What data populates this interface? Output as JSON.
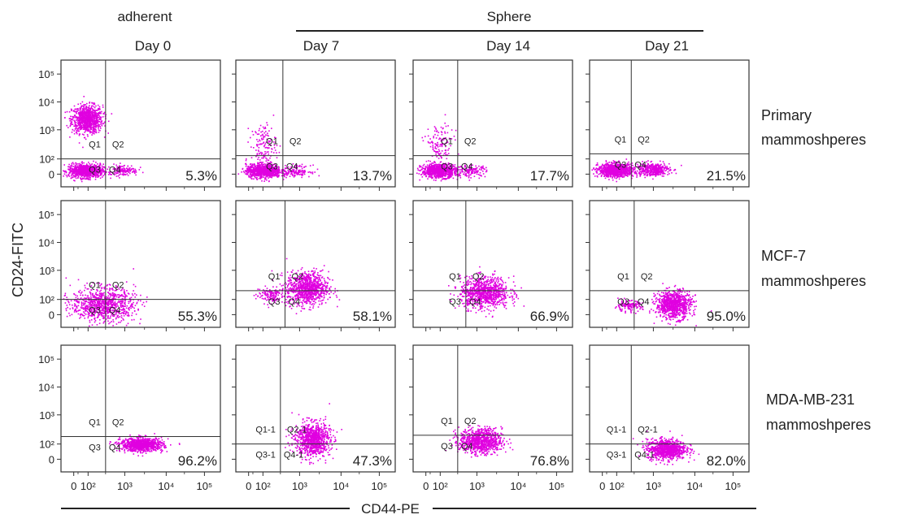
{
  "figure": {
    "group_labels": [
      "adherent",
      "Sphere"
    ],
    "column_titles": [
      "Day 0",
      "Day 7",
      "Day 14",
      "Day 21"
    ],
    "row_labels": [
      [
        "Primary",
        "mammoshperes"
      ],
      [
        "MCF-7",
        "mammoshperes"
      ],
      [
        "MDA-MB-231",
        "mammoshperes"
      ]
    ],
    "y_axis_label": "CD24-FITC",
    "x_axis_label": "CD44-PE",
    "x_ticks": [
      "0",
      "10²",
      "10³",
      "10⁴",
      "10⁵"
    ],
    "y_ticks": [
      "10⁵",
      "10⁴",
      "10³",
      "10²",
      "0"
    ]
  },
  "colors": {
    "dots": "#e000e0",
    "lines": "#333333",
    "text": "#222222"
  },
  "chart_data": [
    {
      "type": "scatter",
      "row": 0,
      "col": 0,
      "percent": "5.3%",
      "quadrant_labels": [
        "Q1",
        "Q2",
        "Q3",
        "Q4"
      ],
      "gate": {
        "x": 300,
        "y": 100
      },
      "populations": [
        {
          "x": 90,
          "y": 2500,
          "spread_x": 0.22,
          "spread_y": 0.25,
          "density": "high"
        },
        {
          "x": 80,
          "y": 25,
          "spread_x": 0.25,
          "spread_y": 0.12,
          "density": "high"
        },
        {
          "x": 900,
          "y": 30,
          "spread_x": 0.2,
          "spread_y": 0.1,
          "density": "low"
        }
      ]
    },
    {
      "type": "scatter",
      "row": 0,
      "col": 1,
      "percent": "13.7%",
      "quadrant_labels": [
        "Q1",
        "Q2",
        "Q3",
        "Q4"
      ],
      "gate": {
        "x": 350,
        "y": 130
      },
      "populations": [
        {
          "x": 100,
          "y": 300,
          "spread_x": 0.18,
          "spread_y": 0.4,
          "density": "low"
        },
        {
          "x": 100,
          "y": 25,
          "spread_x": 0.25,
          "spread_y": 0.12,
          "density": "high"
        },
        {
          "x": 800,
          "y": 25,
          "spread_x": 0.2,
          "spread_y": 0.1,
          "density": "low"
        }
      ]
    },
    {
      "type": "scatter",
      "row": 0,
      "col": 2,
      "percent": "17.7%",
      "quadrant_labels": [
        "Q1",
        "Q2",
        "Q3",
        "Q4"
      ],
      "gate": {
        "x": 300,
        "y": 130
      },
      "populations": [
        {
          "x": 90,
          "y": 300,
          "spread_x": 0.2,
          "spread_y": 0.4,
          "density": "low"
        },
        {
          "x": 90,
          "y": 25,
          "spread_x": 0.25,
          "spread_y": 0.12,
          "density": "high"
        },
        {
          "x": 700,
          "y": 25,
          "spread_x": 0.2,
          "spread_y": 0.1,
          "density": "low"
        }
      ]
    },
    {
      "type": "scatter",
      "row": 0,
      "col": 3,
      "percent": "21.5%",
      "quadrant_labels": [
        "Q1",
        "Q2",
        "Q3",
        "Q4"
      ],
      "gate": {
        "x": 250,
        "y": 150
      },
      "populations": [
        {
          "x": 90,
          "y": 30,
          "spread_x": 0.25,
          "spread_y": 0.12,
          "density": "high"
        },
        {
          "x": 900,
          "y": 35,
          "spread_x": 0.25,
          "spread_y": 0.12,
          "density": "medium"
        }
      ]
    },
    {
      "type": "scatter",
      "row": 1,
      "col": 0,
      "percent": "55.3%",
      "quadrant_labels": [
        "Q1",
        "Q2",
        "Q3",
        "Q4"
      ],
      "gate": {
        "x": 300,
        "y": 100
      },
      "populations": [
        {
          "x": 250,
          "y": 70,
          "spread_x": 0.45,
          "spread_y": 0.3,
          "density": "high"
        }
      ]
    },
    {
      "type": "scatter",
      "row": 1,
      "col": 1,
      "percent": "58.1%",
      "quadrant_labels": [
        "Q1",
        "Q2",
        "Q3",
        "Q4"
      ],
      "gate": {
        "x": 400,
        "y": 200
      },
      "populations": [
        {
          "x": 1500,
          "y": 250,
          "spread_x": 0.3,
          "spread_y": 0.3,
          "density": "high"
        },
        {
          "x": 150,
          "y": 150,
          "spread_x": 0.2,
          "spread_y": 0.15,
          "density": "low"
        }
      ]
    },
    {
      "type": "scatter",
      "row": 1,
      "col": 2,
      "percent": "66.9%",
      "quadrant_labels": [
        "Q1",
        "Q2",
        "Q3",
        "Q4"
      ],
      "gate": {
        "x": 500,
        "y": 200
      },
      "populations": [
        {
          "x": 1500,
          "y": 180,
          "spread_x": 0.35,
          "spread_y": 0.28,
          "density": "high"
        }
      ]
    },
    {
      "type": "scatter",
      "row": 1,
      "col": 3,
      "percent": "95.0%",
      "quadrant_labels": [
        "Q1",
        "Q2",
        "Q3",
        "Q4"
      ],
      "gate": {
        "x": 300,
        "y": 200
      },
      "populations": [
        {
          "x": 3000,
          "y": 70,
          "spread_x": 0.25,
          "spread_y": 0.25,
          "density": "high"
        },
        {
          "x": 200,
          "y": 60,
          "spread_x": 0.2,
          "spread_y": 0.1,
          "density": "low"
        }
      ]
    },
    {
      "type": "scatter",
      "row": 2,
      "col": 0,
      "percent": "96.2%",
      "quadrant_labels": [
        "Q1",
        "Q2",
        "Q3",
        "Q4"
      ],
      "gate": {
        "x": 300,
        "y": 180
      },
      "populations": [
        {
          "x": 2500,
          "y": 100,
          "spread_x": 0.3,
          "spread_y": 0.12,
          "density": "high"
        }
      ]
    },
    {
      "type": "scatter",
      "row": 2,
      "col": 1,
      "percent": "47.3%",
      "quadrant_labels": [
        "Q1-1",
        "Q2-1",
        "Q3-1",
        "Q4-1"
      ],
      "gate": {
        "x": 300,
        "y": 100
      },
      "populations": [
        {
          "x": 2000,
          "y": 150,
          "spread_x": 0.25,
          "spread_y": 0.3,
          "density": "high"
        }
      ]
    },
    {
      "type": "scatter",
      "row": 2,
      "col": 2,
      "percent": "76.8%",
      "quadrant_labels": [
        "Q1",
        "Q2",
        "Q3",
        "Q4"
      ],
      "gate": {
        "x": 300,
        "y": 200
      },
      "populations": [
        {
          "x": 1200,
          "y": 130,
          "spread_x": 0.3,
          "spread_y": 0.22,
          "density": "high"
        }
      ]
    },
    {
      "type": "scatter",
      "row": 2,
      "col": 3,
      "percent": "82.0%",
      "quadrant_labels": [
        "Q1-1",
        "Q2-1",
        "Q3-1",
        "Q4-1"
      ],
      "gate": {
        "x": 250,
        "y": 100
      },
      "populations": [
        {
          "x": 2000,
          "y": 70,
          "spread_x": 0.28,
          "spread_y": 0.18,
          "density": "high"
        }
      ]
    }
  ]
}
